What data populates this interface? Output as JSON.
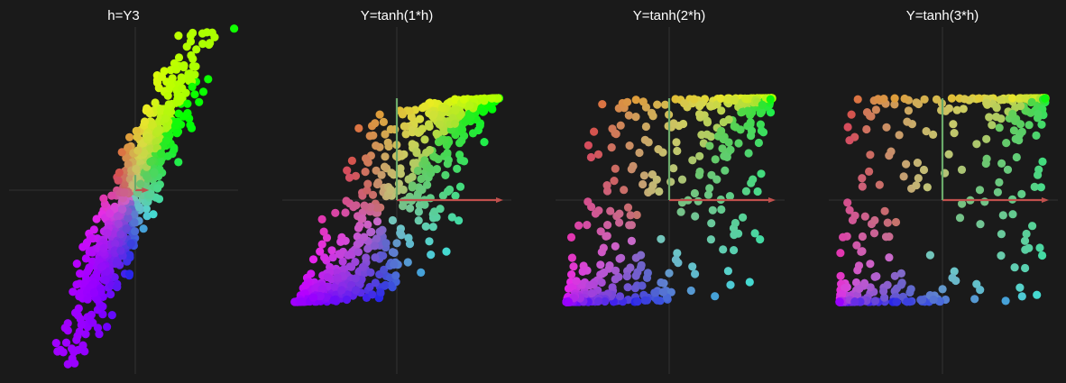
{
  "chart_data": [
    {
      "type": "scatter",
      "title": "h=Y3",
      "transform": "identity",
      "xlim": [
        -3.0,
        2.6
      ],
      "ylim": [
        -4.2,
        4.2
      ],
      "grid": false,
      "basis_vectors": {
        "x": [
          0.3,
          0.0
        ],
        "y": [
          0.0,
          0.35
        ]
      }
    },
    {
      "type": "scatter",
      "title": "Y=tanh(1*h)",
      "transform": "tanh",
      "gain": 1,
      "xlim": [
        -1.1,
        1.1
      ],
      "ylim": [
        -1.7,
        1.7
      ],
      "grid": false,
      "basis_vectors": {
        "x": [
          1.0,
          0.0
        ],
        "y": [
          0.0,
          1.0
        ]
      }
    },
    {
      "type": "scatter",
      "title": "Y=tanh(2*h)",
      "transform": "tanh",
      "gain": 2,
      "xlim": [
        -1.1,
        1.1
      ],
      "ylim": [
        -1.7,
        1.7
      ],
      "grid": false,
      "basis_vectors": {
        "x": [
          1.0,
          0.0
        ],
        "y": [
          0.0,
          1.0
        ]
      }
    },
    {
      "type": "scatter",
      "title": "Y=tanh(3*h)",
      "transform": "tanh",
      "gain": 3,
      "xlim": [
        -1.1,
        1.1
      ],
      "ylim": [
        -1.7,
        1.7
      ],
      "grid": false,
      "basis_vectors": {
        "x": [
          1.0,
          0.0
        ],
        "y": [
          0.0,
          1.0
        ]
      }
    }
  ],
  "colors": {
    "background": "#1a1a1a",
    "axis_line": "#333333",
    "x_basis": "#c0504d",
    "y_basis": "#6aaa6a",
    "title": "#ffffff"
  }
}
